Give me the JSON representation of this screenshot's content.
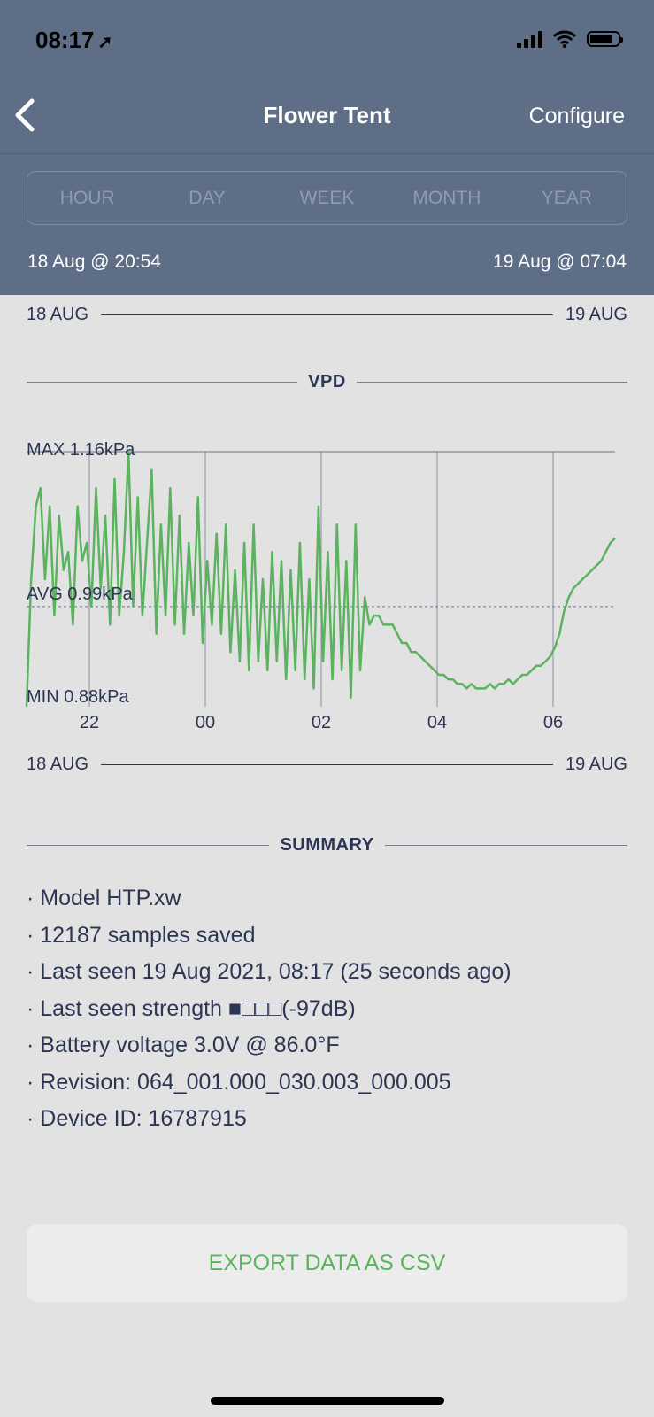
{
  "status_bar": {
    "time": "08:17",
    "location_icon": "location-arrow-icon",
    "battery_level": 0.8
  },
  "nav": {
    "back_icon": "chevron-left-icon",
    "title": "Flower Tent",
    "configure_label": "Configure"
  },
  "segments": [
    "HOUR",
    "DAY",
    "WEEK",
    "MONTH",
    "YEAR"
  ],
  "range": {
    "start": "18 Aug @ 20:54",
    "end": "19 Aug @ 07:04"
  },
  "top_dates": {
    "left": "18 AUG",
    "right": "19 AUG"
  },
  "vpd_title": "VPD",
  "chart_data": {
    "type": "line",
    "title": "VPD",
    "series": [
      {
        "values": [
          0.88,
          1.02,
          1.1,
          1.12,
          1.02,
          1.1,
          0.98,
          1.09,
          1.03,
          1.05,
          0.97,
          1.1,
          1.04,
          1.06,
          0.99,
          1.12,
          1.01,
          1.09,
          0.97,
          1.13,
          0.98,
          1.05,
          1.16,
          0.99,
          1.11,
          0.98,
          1.06,
          1.14,
          0.96,
          1.08,
          0.98,
          1.12,
          0.97,
          1.09,
          0.96,
          1.06,
          0.98,
          1.11,
          0.95,
          1.04,
          0.97,
          1.07,
          0.96,
          1.08,
          0.94,
          1.03,
          0.93,
          1.06,
          0.92,
          1.08,
          0.93,
          1.02,
          0.92,
          1.05,
          0.93,
          1.04,
          0.91,
          1.03,
          0.92,
          1.06,
          0.91,
          1.02,
          0.9,
          1.1,
          0.93,
          1.05,
          0.91,
          1.08,
          0.92,
          1.04,
          0.89,
          1.08,
          0.92,
          1.0,
          0.97,
          0.98,
          0.98,
          0.97,
          0.97,
          0.97,
          0.96,
          0.95,
          0.95,
          0.94,
          0.94,
          0.935,
          0.93,
          0.925,
          0.92,
          0.915,
          0.915,
          0.91,
          0.91,
          0.905,
          0.905,
          0.9,
          0.905,
          0.9,
          0.9,
          0.9,
          0.905,
          0.9,
          0.905,
          0.905,
          0.91,
          0.905,
          0.91,
          0.915,
          0.915,
          0.92,
          0.925,
          0.925,
          0.93,
          0.935,
          0.945,
          0.96,
          0.985,
          1.0,
          1.01,
          1.015,
          1.02,
          1.025,
          1.03,
          1.035,
          1.04,
          1.05,
          1.06,
          1.065
        ]
      }
    ],
    "y_labels": {
      "max": "MAX 1.16kPa",
      "avg": "AVG 0.99kPa",
      "min": "MIN 0.88kPa"
    },
    "ylim": [
      0.88,
      1.16
    ],
    "avg": 0.99,
    "x_ticks": [
      "22",
      "00",
      "02",
      "04",
      "06"
    ],
    "x_range": {
      "start": "18 Aug @ 20:54",
      "end": "19 Aug @ 07:04"
    },
    "line_color": "#5bb35f",
    "grid": true
  },
  "bottom_dates": {
    "left": "18 AUG",
    "right": "19 AUG"
  },
  "summary_title": "SUMMARY",
  "summary": [
    "· Model HTP.xw",
    "· 12187 samples saved",
    "· Last seen 19 Aug 2021, 08:17 (25 seconds ago)",
    "· Last seen strength ■□□□(-97dB)",
    "· Battery voltage 3.0V @ 86.0°F",
    "· Revision: 064_001.000_030.003_000.005",
    "· Device ID: 16787915"
  ],
  "export_label": "EXPORT DATA AS CSV",
  "colors": {
    "header": "#5e6e86",
    "accent": "#5bb35f",
    "text": "#2c3553",
    "background": "#e2e2e2"
  }
}
